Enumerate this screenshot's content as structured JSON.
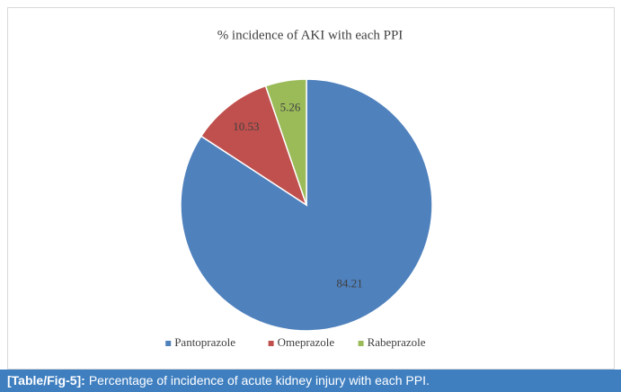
{
  "chart_data": {
    "type": "pie",
    "title": "% incidence of AKI with each PPI",
    "categories": [
      "Pantoprazole",
      "Omeprazole",
      "Rabeprazole"
    ],
    "values": [
      84.21,
      10.53,
      5.26
    ],
    "colors": [
      "#4f81bd",
      "#c0504d",
      "#9bbb59"
    ],
    "legend": "bottom"
  },
  "caption": {
    "label": "[Table/Fig-5]:",
    "text": "Percentage of incidence of acute kidney injury with each PPI."
  }
}
